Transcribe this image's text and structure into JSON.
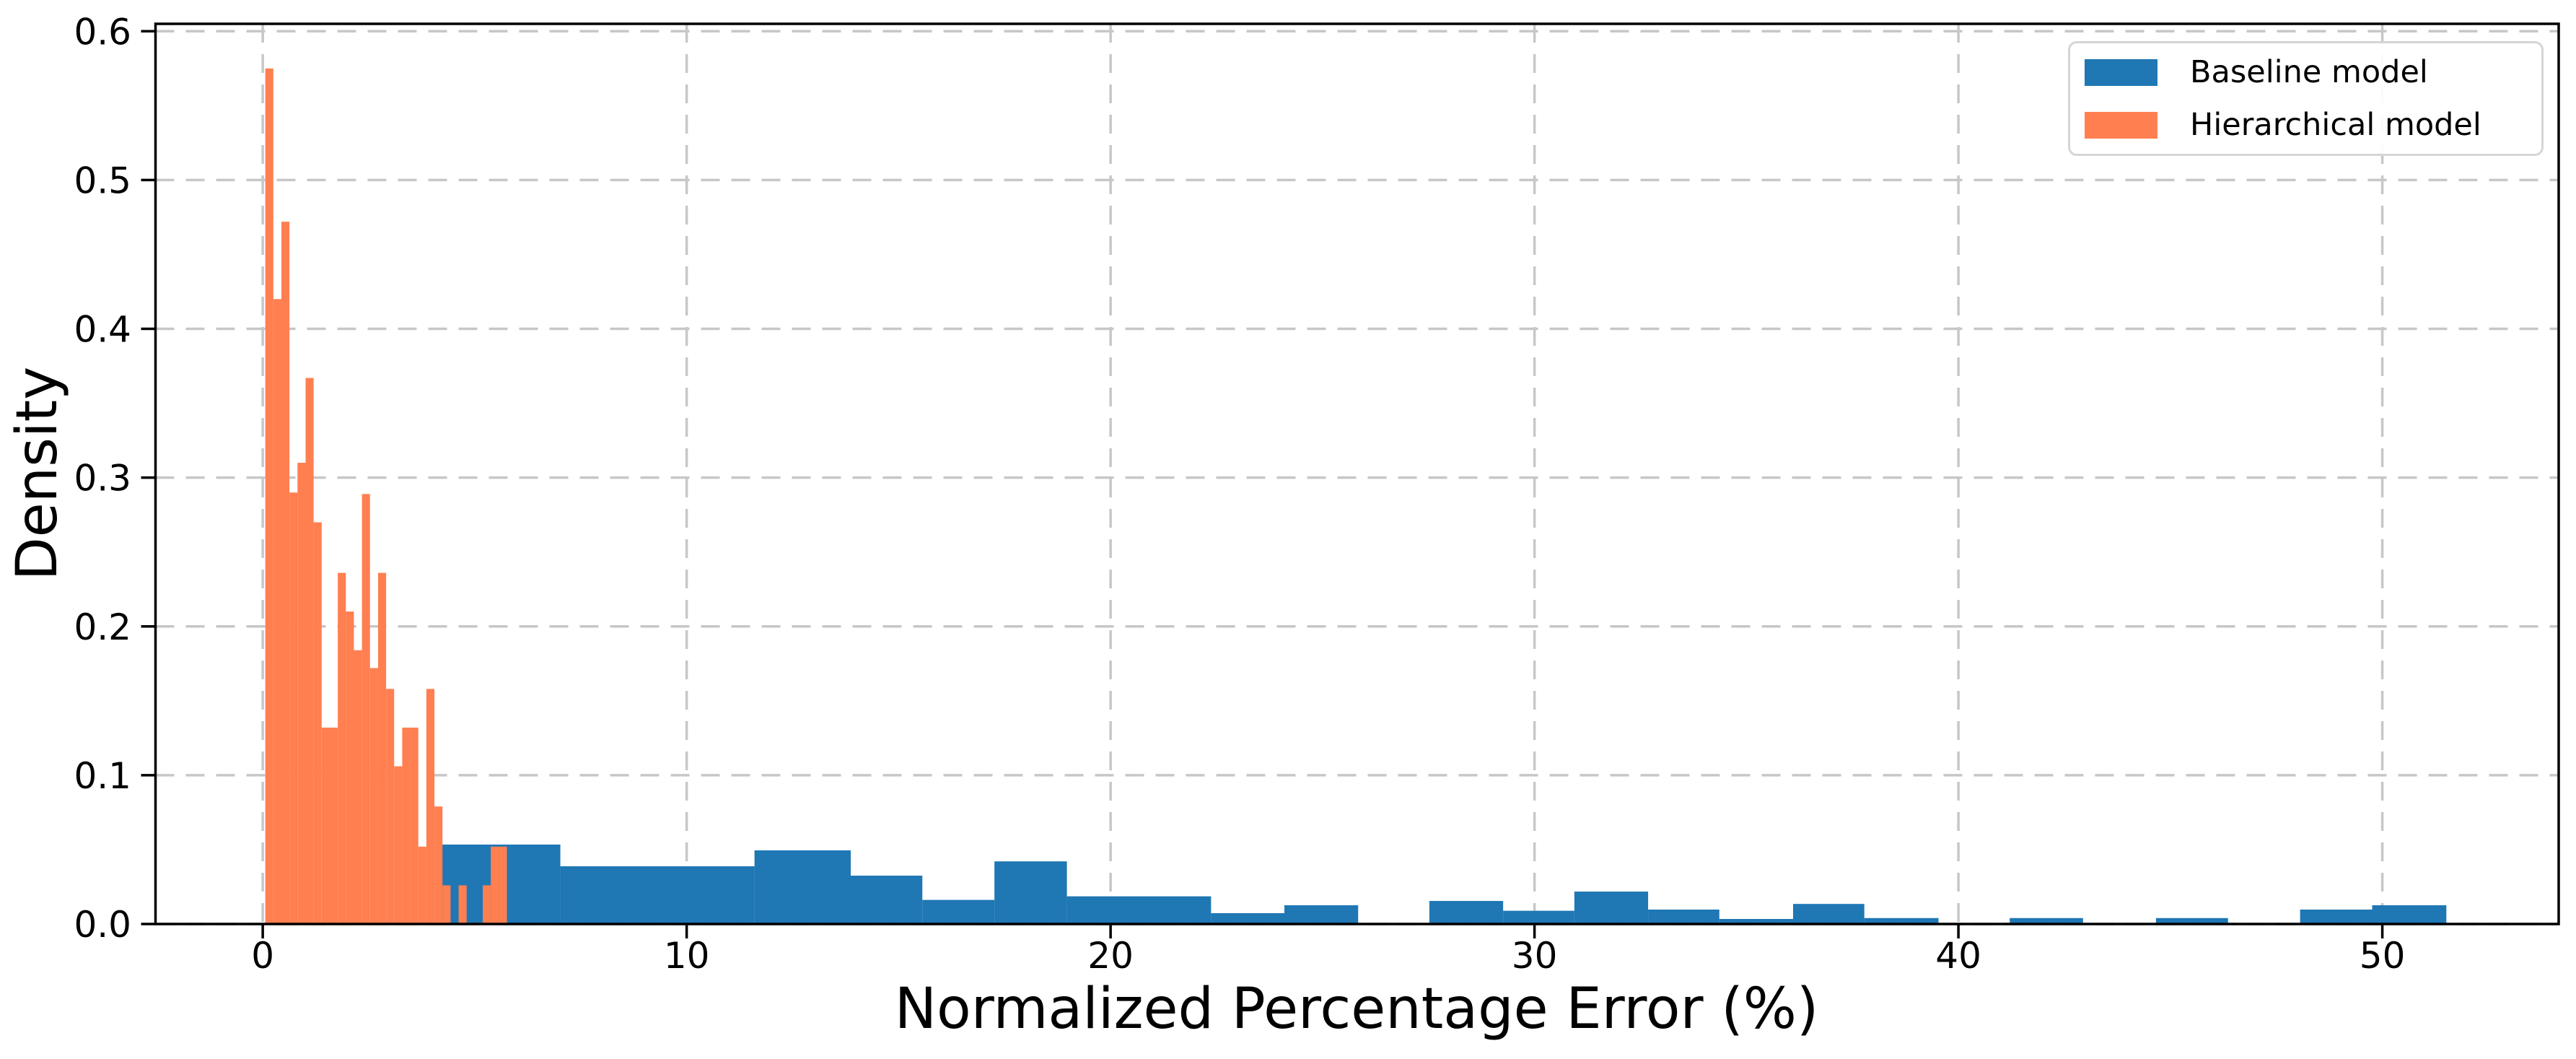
{
  "figure": {
    "background": "#ffffff",
    "xlabel": "Normalized Percentage Error (%)",
    "ylabel": "Density"
  },
  "chart_data": {
    "type": "bar",
    "subtype": "overlaid-histogram",
    "title": "",
    "xlabel": "Normalized Percentage Error (%)",
    "ylabel": "Density",
    "xlim": [
      -2.53,
      54.16
    ],
    "ylim": [
      0,
      0.605
    ],
    "xticks": [
      0,
      10,
      20,
      30,
      40,
      50
    ],
    "xtick_labels": [
      "0",
      "10",
      "20",
      "30",
      "40",
      "50"
    ],
    "yticks": [
      0.0,
      0.1,
      0.2,
      0.3,
      0.4,
      0.5,
      0.6
    ],
    "ytick_labels": [
      "0.0",
      "0.1",
      "0.2",
      "0.3",
      "0.4",
      "0.5",
      "0.6"
    ],
    "grid": {
      "visible": true,
      "style": "dashed",
      "color": "#c7c7c7"
    },
    "legend": {
      "position": "upper right"
    },
    "axis_color": "#000000",
    "series": [
      {
        "name": "Baseline model",
        "color": "#1f77b4",
        "unit": "density",
        "bars": [
          [
            4.22,
            7.02,
            0.0534
          ],
          [
            7.02,
            11.6,
            0.0388
          ],
          [
            11.6,
            13.87,
            0.0495
          ],
          [
            13.87,
            15.56,
            0.0325
          ],
          [
            15.56,
            17.26,
            0.0162
          ],
          [
            17.26,
            18.97,
            0.0421
          ],
          [
            18.97,
            22.37,
            0.0186
          ],
          [
            22.37,
            24.1,
            0.0073
          ],
          [
            24.1,
            25.84,
            0.0126
          ],
          [
            25.84,
            27.52,
            0.0
          ],
          [
            27.52,
            29.26,
            0.0155
          ],
          [
            29.26,
            30.94,
            0.0089
          ],
          [
            30.94,
            32.68,
            0.0218
          ],
          [
            32.68,
            34.36,
            0.0097
          ],
          [
            34.36,
            36.1,
            0.0034
          ],
          [
            36.1,
            37.78,
            0.0135
          ],
          [
            37.78,
            39.53,
            0.004
          ],
          [
            39.53,
            41.21,
            0.0
          ],
          [
            41.21,
            42.94,
            0.004
          ],
          [
            42.94,
            44.66,
            0.0
          ],
          [
            44.66,
            46.36,
            0.004
          ],
          [
            46.36,
            48.06,
            0.0
          ],
          [
            48.06,
            49.76,
            0.0097
          ],
          [
            49.76,
            51.51,
            0.0126
          ]
        ]
      },
      {
        "name": "Hierarchical model",
        "color": "#ff7f50",
        "unit": "density",
        "bars": [
          [
            0.06,
            0.25,
            0.575
          ],
          [
            0.25,
            0.44,
            0.42
          ],
          [
            0.44,
            0.63,
            0.472
          ],
          [
            0.63,
            0.82,
            0.29
          ],
          [
            0.82,
            1.01,
            0.31
          ],
          [
            1.01,
            1.2,
            0.367
          ],
          [
            1.2,
            1.39,
            0.27
          ],
          [
            1.39,
            1.58,
            0.132
          ],
          [
            1.58,
            1.77,
            0.132
          ],
          [
            1.77,
            1.96,
            0.236
          ],
          [
            1.96,
            2.15,
            0.21
          ],
          [
            2.15,
            2.34,
            0.184
          ],
          [
            2.34,
            2.53,
            0.289
          ],
          [
            2.53,
            2.72,
            0.172
          ],
          [
            2.72,
            2.91,
            0.236
          ],
          [
            2.91,
            3.1,
            0.158
          ],
          [
            3.1,
            3.29,
            0.106
          ],
          [
            3.29,
            3.48,
            0.132
          ],
          [
            3.48,
            3.67,
            0.132
          ],
          [
            3.67,
            3.86,
            0.052
          ],
          [
            3.86,
            4.05,
            0.158
          ],
          [
            4.05,
            4.24,
            0.079
          ],
          [
            4.24,
            4.43,
            0.026
          ],
          [
            4.62,
            4.81,
            0.026
          ],
          [
            5.19,
            5.38,
            0.026
          ],
          [
            5.38,
            5.57,
            0.052
          ],
          [
            5.57,
            5.76,
            0.052
          ]
        ]
      }
    ]
  },
  "legend": {
    "entries": [
      {
        "label": "Baseline model"
      },
      {
        "label": "Hierarchical model"
      }
    ]
  }
}
